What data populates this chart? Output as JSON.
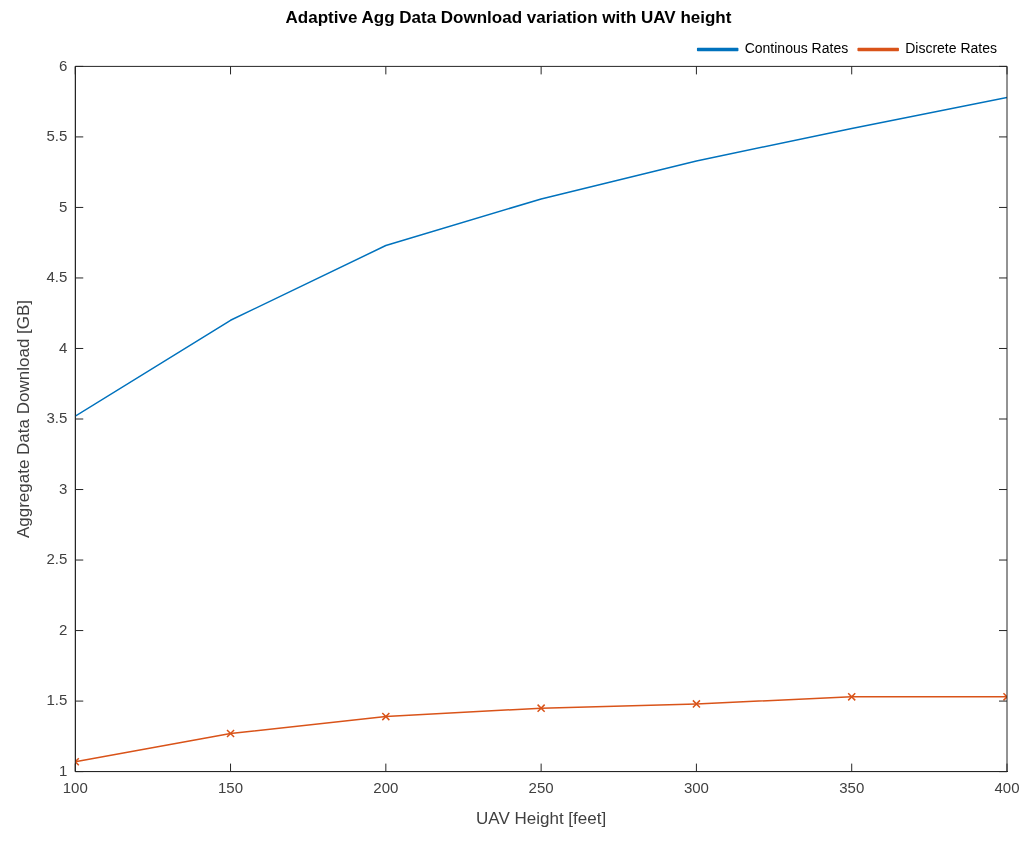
{
  "chart_data": {
    "type": "line",
    "title": "Adaptive Agg Data Download variation with UAV height",
    "xlabel": "UAV Height [feet]",
    "ylabel": "Aggregate Data Download [GB]",
    "x": [
      100,
      150,
      200,
      250,
      300,
      350,
      400
    ],
    "series": [
      {
        "name": "Continous Rates",
        "color": "#0072bd",
        "marker": "none",
        "values": [
          3.52,
          4.2,
          4.73,
          5.06,
          5.33,
          5.56,
          5.78
        ]
      },
      {
        "name": "Discrete Rates",
        "color": "#d95319",
        "marker": "cross",
        "values": [
          1.07,
          1.27,
          1.39,
          1.45,
          1.48,
          1.53,
          1.53
        ]
      }
    ],
    "xlim": [
      100,
      400
    ],
    "xticks": [
      100,
      150,
      200,
      250,
      300,
      350,
      400
    ],
    "ylim": [
      1,
      6
    ],
    "yticks": [
      1,
      1.5,
      2,
      2.5,
      3,
      3.5,
      4,
      4.5,
      5,
      5.5,
      6
    ],
    "grid": false,
    "legend": "top right",
    "line_style": "solid"
  }
}
